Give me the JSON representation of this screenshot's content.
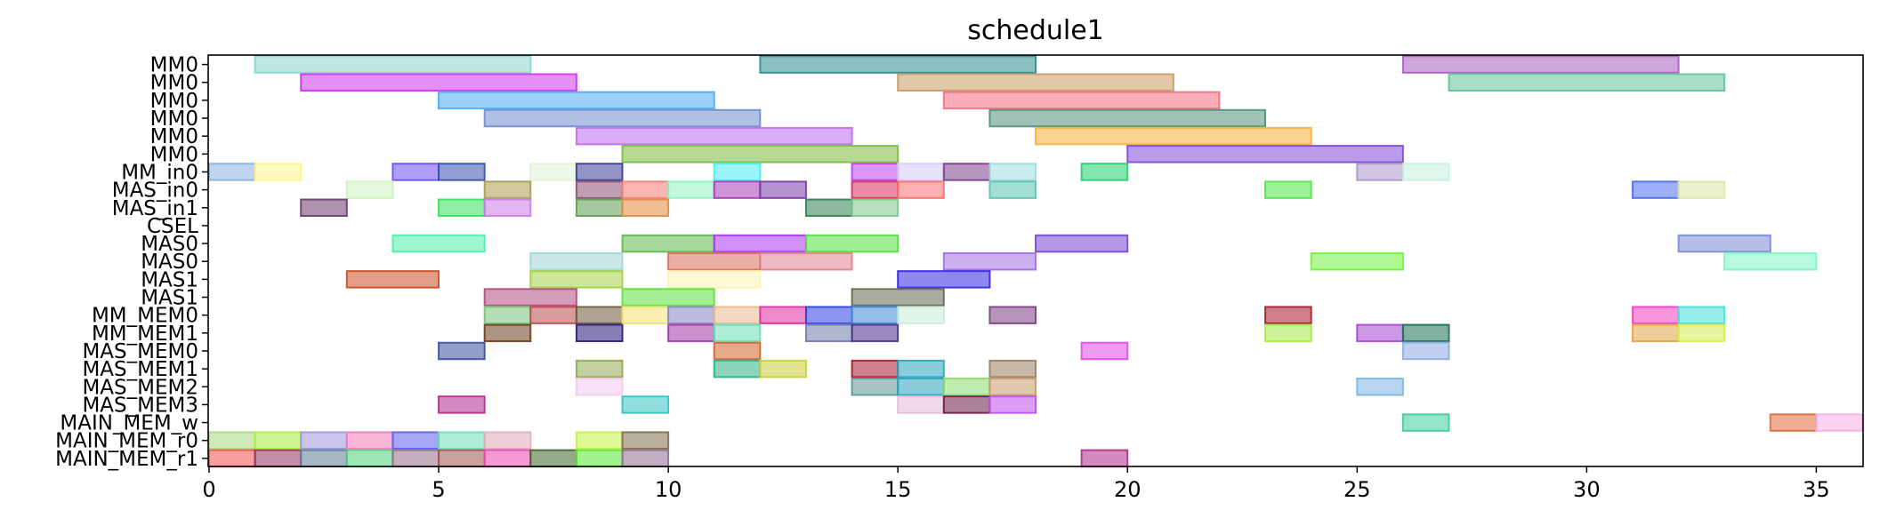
{
  "chart_data": {
    "type": "gantt",
    "title": "schedule1",
    "xlabel": "",
    "ylabel": "",
    "xlim": [
      0,
      36
    ],
    "xticks": [
      0,
      5,
      10,
      15,
      20,
      25,
      30,
      35
    ],
    "grid": false,
    "rows": [
      "MM0",
      "MM0",
      "MM0",
      "MM0",
      "MM0",
      "MM0",
      "MM_in0",
      "MAS_in0",
      "MAS_in1",
      "CSEL",
      "MAS0",
      "MAS0",
      "MAS1",
      "MAS1",
      "MM_MEM0",
      "MM_MEM1",
      "MAS_MEM0",
      "MAS_MEM1",
      "MAS_MEM2",
      "MAS_MEM3",
      "MAIN_MEM_w",
      "MAIN_MEM_r0",
      "MAIN_MEM_r1"
    ],
    "bars": [
      {
        "row": 0,
        "start": 1,
        "end": 7,
        "color": "#88d3cf"
      },
      {
        "row": 0,
        "start": 12,
        "end": 18,
        "color": "#2a8c8c"
      },
      {
        "row": 0,
        "start": 26,
        "end": 32,
        "color": "#a75cc0"
      },
      {
        "row": 1,
        "start": 2,
        "end": 8,
        "color": "#cf33f0"
      },
      {
        "row": 1,
        "start": 15,
        "end": 21,
        "color": "#c89a62"
      },
      {
        "row": 1,
        "start": 27,
        "end": 33,
        "color": "#5cc595"
      },
      {
        "row": 2,
        "start": 5,
        "end": 11,
        "color": "#49aaf4"
      },
      {
        "row": 2,
        "start": 16,
        "end": 22,
        "color": "#f56a80"
      },
      {
        "row": 3,
        "start": 6,
        "end": 12,
        "color": "#6f8ccc"
      },
      {
        "row": 3,
        "start": 17,
        "end": 23,
        "color": "#4f8f74"
      },
      {
        "row": 4,
        "start": 8,
        "end": 14,
        "color": "#c06af0"
      },
      {
        "row": 4,
        "start": 18,
        "end": 24,
        "color": "#f9ad38"
      },
      {
        "row": 5,
        "start": 9,
        "end": 15,
        "color": "#7eba3c"
      },
      {
        "row": 5,
        "start": 20,
        "end": 26,
        "color": "#8248d8"
      },
      {
        "row": 6,
        "start": 0,
        "end": 1,
        "color": "#8ab0e0"
      },
      {
        "row": 6,
        "start": 1,
        "end": 2,
        "color": "#fff58a"
      },
      {
        "row": 6,
        "start": 4,
        "end": 5,
        "color": "#6a4ef0"
      },
      {
        "row": 6,
        "start": 5,
        "end": 6,
        "color": "#3a4eb0"
      },
      {
        "row": 6,
        "start": 7,
        "end": 8,
        "color": "#e0f2d6"
      },
      {
        "row": 6,
        "start": 8,
        "end": 9,
        "color": "#3a3a96"
      },
      {
        "row": 6,
        "start": 11,
        "end": 12,
        "color": "#47eef2"
      },
      {
        "row": 6,
        "start": 14,
        "end": 15,
        "color": "#bf40ef"
      },
      {
        "row": 6,
        "start": 15,
        "end": 16,
        "color": "#d6ccf6"
      },
      {
        "row": 6,
        "start": 16,
        "end": 17,
        "color": "#7a3f8c"
      },
      {
        "row": 6,
        "start": 17,
        "end": 18,
        "color": "#9fdcdf"
      },
      {
        "row": 6,
        "start": 19,
        "end": 20,
        "color": "#21cf6e"
      },
      {
        "row": 6,
        "start": 25,
        "end": 26,
        "color": "#ab96c8"
      },
      {
        "row": 6,
        "start": 26,
        "end": 27,
        "color": "#c4f2dd"
      },
      {
        "row": 7,
        "start": 3,
        "end": 4,
        "color": "#cef2bf"
      },
      {
        "row": 7,
        "start": 6,
        "end": 7,
        "color": "#a89c4c"
      },
      {
        "row": 7,
        "start": 8,
        "end": 9,
        "color": "#8c4c75"
      },
      {
        "row": 7,
        "start": 9,
        "end": 10,
        "color": "#f97a72"
      },
      {
        "row": 7,
        "start": 10,
        "end": 11,
        "color": "#8ff3c3"
      },
      {
        "row": 7,
        "start": 11,
        "end": 12,
        "color": "#a53cb5"
      },
      {
        "row": 7,
        "start": 12,
        "end": 13,
        "color": "#7a3aaa"
      },
      {
        "row": 7,
        "start": 14,
        "end": 15,
        "color": "#d62f5b"
      },
      {
        "row": 7,
        "start": 15,
        "end": 16,
        "color": "#f86e6e"
      },
      {
        "row": 7,
        "start": 17,
        "end": 18,
        "color": "#5ac4b1"
      },
      {
        "row": 7,
        "start": 23,
        "end": 24,
        "color": "#4ee642"
      },
      {
        "row": 7,
        "start": 31,
        "end": 32,
        "color": "#4b6ef0"
      },
      {
        "row": 7,
        "start": 32,
        "end": 33,
        "color": "#dde5a4"
      },
      {
        "row": 8,
        "start": 2,
        "end": 3,
        "color": "#6d3a6b"
      },
      {
        "row": 8,
        "start": 5,
        "end": 6,
        "color": "#34e05a"
      },
      {
        "row": 8,
        "start": 6,
        "end": 7,
        "color": "#c87ae6"
      },
      {
        "row": 8,
        "start": 8,
        "end": 9,
        "color": "#5c9c4c"
      },
      {
        "row": 8,
        "start": 9,
        "end": 10,
        "color": "#e2893c"
      },
      {
        "row": 8,
        "start": 13,
        "end": 14,
        "color": "#2f7f50"
      },
      {
        "row": 8,
        "start": 14,
        "end": 15,
        "color": "#7ec68a"
      },
      {
        "row": 10,
        "start": 4,
        "end": 6,
        "color": "#4cf0a6"
      },
      {
        "row": 10,
        "start": 9,
        "end": 11,
        "color": "#5cba48"
      },
      {
        "row": 10,
        "start": 11,
        "end": 13,
        "color": "#a934ec"
      },
      {
        "row": 10,
        "start": 13,
        "end": 15,
        "color": "#4fe03c"
      },
      {
        "row": 10,
        "start": 18,
        "end": 20,
        "color": "#7446d0"
      },
      {
        "row": 10,
        "start": 32,
        "end": 34,
        "color": "#7a8ad4"
      },
      {
        "row": 11,
        "start": 7,
        "end": 9,
        "color": "#9fd6d6"
      },
      {
        "row": 11,
        "start": 10,
        "end": 12,
        "color": "#db6c5c"
      },
      {
        "row": 11,
        "start": 12,
        "end": 14,
        "color": "#e0808c"
      },
      {
        "row": 11,
        "start": 16,
        "end": 18,
        "color": "#a06ee0"
      },
      {
        "row": 11,
        "start": 24,
        "end": 26,
        "color": "#6ef23c"
      },
      {
        "row": 11,
        "start": 33,
        "end": 35,
        "color": "#7cf6c3"
      },
      {
        "row": 12,
        "start": 3,
        "end": 5,
        "color": "#cc4a22"
      },
      {
        "row": 12,
        "start": 7,
        "end": 9,
        "color": "#a2d045"
      },
      {
        "row": 12,
        "start": 10,
        "end": 12,
        "color": "#fff2b0"
      },
      {
        "row": 12,
        "start": 15,
        "end": 17,
        "color": "#3426e6"
      },
      {
        "row": 13,
        "start": 6,
        "end": 8,
        "color": "#b24a7c"
      },
      {
        "row": 13,
        "start": 9,
        "end": 11,
        "color": "#5ce03a"
      },
      {
        "row": 13,
        "start": 14,
        "end": 16,
        "color": "#666650"
      },
      {
        "row": 14,
        "start": 6,
        "end": 7,
        "color": "#76c47a"
      },
      {
        "row": 14,
        "start": 7,
        "end": 8,
        "color": "#b84a4a"
      },
      {
        "row": 14,
        "start": 8,
        "end": 9,
        "color": "#6e5a38"
      },
      {
        "row": 14,
        "start": 9,
        "end": 10,
        "color": "#f0e070"
      },
      {
        "row": 14,
        "start": 10,
        "end": 11,
        "color": "#8884c8"
      },
      {
        "row": 14,
        "start": 11,
        "end": 12,
        "color": "#e9b890"
      },
      {
        "row": 14,
        "start": 12,
        "end": 13,
        "color": "#e02ea0"
      },
      {
        "row": 14,
        "start": 13,
        "end": 14,
        "color": "#2e40e6"
      },
      {
        "row": 14,
        "start": 14,
        "end": 15,
        "color": "#3a88d4"
      },
      {
        "row": 14,
        "start": 15,
        "end": 16,
        "color": "#c4ecd8"
      },
      {
        "row": 14,
        "start": 17,
        "end": 18,
        "color": "#7c3e82"
      },
      {
        "row": 14,
        "start": 23,
        "end": 24,
        "color": "#a8182e"
      },
      {
        "row": 14,
        "start": 31,
        "end": 32,
        "color": "#f23ec0"
      },
      {
        "row": 14,
        "start": 32,
        "end": 33,
        "color": "#44e0d8"
      },
      {
        "row": 15,
        "start": 6,
        "end": 7,
        "color": "#6a3a1a"
      },
      {
        "row": 15,
        "start": 8,
        "end": 9,
        "color": "#241878"
      },
      {
        "row": 15,
        "start": 10,
        "end": 11,
        "color": "#9a38a8"
      },
      {
        "row": 15,
        "start": 11,
        "end": 12,
        "color": "#6cdcb8"
      },
      {
        "row": 15,
        "start": 13,
        "end": 14,
        "color": "#6e7aaa"
      },
      {
        "row": 15,
        "start": 14,
        "end": 15,
        "color": "#4a2e88"
      },
      {
        "row": 15,
        "start": 23,
        "end": 24,
        "color": "#a2ea3e"
      },
      {
        "row": 15,
        "start": 25,
        "end": 26,
        "color": "#a446d0"
      },
      {
        "row": 15,
        "start": 26,
        "end": 27,
        "color": "#1a6e56"
      },
      {
        "row": 15,
        "start": 31,
        "end": 32,
        "color": "#e2a440"
      },
      {
        "row": 15,
        "start": 32,
        "end": 33,
        "color": "#d6ec4c"
      },
      {
        "row": 16,
        "start": 5,
        "end": 6,
        "color": "#384e9c"
      },
      {
        "row": 16,
        "start": 11,
        "end": 12,
        "color": "#d4622e"
      },
      {
        "row": 16,
        "start": 19,
        "end": 20,
        "color": "#e04ae8"
      },
      {
        "row": 16,
        "start": 26,
        "end": 27,
        "color": "#8aace0"
      },
      {
        "row": 17,
        "start": 8,
        "end": 9,
        "color": "#90a84e"
      },
      {
        "row": 17,
        "start": 11,
        "end": 12,
        "color": "#2eb084"
      },
      {
        "row": 17,
        "start": 12,
        "end": 13,
        "color": "#c8d038"
      },
      {
        "row": 17,
        "start": 14,
        "end": 15,
        "color": "#a2192c"
      },
      {
        "row": 17,
        "start": 15,
        "end": 16,
        "color": "#2aa2bc"
      },
      {
        "row": 17,
        "start": 17,
        "end": 18,
        "color": "#9a7e5e"
      },
      {
        "row": 18,
        "start": 8,
        "end": 9,
        "color": "#f2c8ee"
      },
      {
        "row": 18,
        "start": 14,
        "end": 15,
        "color": "#5c9696"
      },
      {
        "row": 18,
        "start": 15,
        "end": 16,
        "color": "#2aa2bc"
      },
      {
        "row": 18,
        "start": 16,
        "end": 17,
        "color": "#8adc6e"
      },
      {
        "row": 18,
        "start": 17,
        "end": 18,
        "color": "#c49a6a"
      },
      {
        "row": 18,
        "start": 25,
        "end": 26,
        "color": "#7ab4e6"
      },
      {
        "row": 19,
        "start": 5,
        "end": 6,
        "color": "#b02e8c"
      },
      {
        "row": 19,
        "start": 9,
        "end": 10,
        "color": "#34c2c2"
      },
      {
        "row": 19,
        "start": 15,
        "end": 16,
        "color": "#e2bcd8"
      },
      {
        "row": 19,
        "start": 16,
        "end": 17,
        "color": "#6a1a46"
      },
      {
        "row": 19,
        "start": 17,
        "end": 18,
        "color": "#bc4ef0"
      },
      {
        "row": 20,
        "start": 26,
        "end": 27,
        "color": "#3ccd9a"
      },
      {
        "row": 20,
        "start": 34,
        "end": 35,
        "color": "#e06a3a"
      },
      {
        "row": 20,
        "start": 35,
        "end": 36,
        "color": "#f4aee6"
      },
      {
        "row": 21,
        "start": 0,
        "end": 1,
        "color": "#a8d87e"
      },
      {
        "row": 21,
        "start": 1,
        "end": 2,
        "color": "#a6f03a"
      },
      {
        "row": 21,
        "start": 2,
        "end": 3,
        "color": "#9e96e0"
      },
      {
        "row": 21,
        "start": 3,
        "end": 4,
        "color": "#f47ab8"
      },
      {
        "row": 21,
        "start": 4,
        "end": 5,
        "color": "#5c5ef0"
      },
      {
        "row": 21,
        "start": 5,
        "end": 6,
        "color": "#6ae0b4"
      },
      {
        "row": 21,
        "start": 6,
        "end": 7,
        "color": "#e0acb8"
      },
      {
        "row": 21,
        "start": 8,
        "end": 9,
        "color": "#c6f040"
      },
      {
        "row": 21,
        "start": 9,
        "end": 10,
        "color": "#7e6e4c"
      },
      {
        "row": 22,
        "start": 0,
        "end": 1,
        "color": "#f2504e"
      },
      {
        "row": 22,
        "start": 1,
        "end": 2,
        "color": "#962e5e"
      },
      {
        "row": 22,
        "start": 2,
        "end": 3,
        "color": "#5c7e98"
      },
      {
        "row": 22,
        "start": 3,
        "end": 4,
        "color": "#4ed07a"
      },
      {
        "row": 22,
        "start": 4,
        "end": 5,
        "color": "#946e84"
      },
      {
        "row": 22,
        "start": 5,
        "end": 6,
        "color": "#9e5454"
      },
      {
        "row": 22,
        "start": 6,
        "end": 7,
        "color": "#f044b4"
      },
      {
        "row": 22,
        "start": 7,
        "end": 8,
        "color": "#3c6428"
      },
      {
        "row": 22,
        "start": 8,
        "end": 9,
        "color": "#56e832"
      },
      {
        "row": 22,
        "start": 9,
        "end": 10,
        "color": "#8c6e8e"
      },
      {
        "row": 22,
        "start": 19,
        "end": 20,
        "color": "#b02e8c"
      }
    ]
  }
}
